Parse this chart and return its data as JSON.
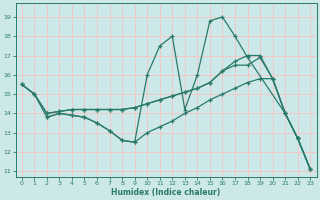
{
  "xlabel": "Humidex (Indice chaleur)",
  "xlim": [
    -0.5,
    23.5
  ],
  "ylim": [
    10.7,
    19.7
  ],
  "yticks": [
    11,
    12,
    13,
    14,
    15,
    16,
    17,
    18,
    19
  ],
  "xticks": [
    0,
    1,
    2,
    3,
    4,
    5,
    6,
    7,
    8,
    9,
    10,
    11,
    12,
    13,
    14,
    15,
    16,
    17,
    18,
    19,
    20,
    21,
    22,
    23
  ],
  "bg_color": "#cce8e8",
  "grid_color": "#f2c8c8",
  "line_color": "#2a7a6a",
  "line1_x": [
    0,
    1,
    2,
    3,
    4,
    5,
    6,
    7,
    8,
    9,
    10,
    11,
    12,
    13,
    14,
    15,
    16,
    17,
    18,
    21,
    22,
    23
  ],
  "line1_y": [
    15.5,
    15.0,
    13.8,
    14.0,
    13.9,
    13.8,
    13.5,
    13.1,
    12.6,
    12.5,
    16.0,
    17.5,
    18.0,
    14.2,
    16.0,
    18.8,
    19.0,
    18.0,
    16.9,
    14.0,
    12.7,
    11.1
  ],
  "line2_x": [
    0,
    1,
    2,
    3,
    4,
    5,
    6,
    7,
    8,
    9,
    10,
    11,
    12,
    13,
    14,
    15,
    16,
    17,
    18,
    19,
    20,
    21,
    22,
    23
  ],
  "line2_y": [
    15.5,
    15.0,
    14.0,
    14.1,
    14.2,
    14.2,
    14.2,
    14.2,
    14.2,
    14.3,
    14.5,
    14.7,
    14.9,
    15.1,
    15.3,
    15.6,
    16.2,
    16.7,
    17.0,
    17.0,
    15.8,
    14.0,
    12.7,
    11.1
  ],
  "line3_x": [
    0,
    1,
    2,
    3,
    4,
    5,
    6,
    7,
    8,
    9,
    10,
    11,
    12,
    13,
    14,
    15,
    16,
    17,
    18,
    19,
    20,
    21,
    22,
    23
  ],
  "line3_y": [
    15.5,
    15.0,
    14.0,
    14.1,
    14.2,
    14.2,
    14.2,
    14.2,
    14.2,
    14.3,
    14.5,
    14.7,
    14.9,
    15.1,
    15.3,
    15.6,
    16.2,
    16.5,
    16.5,
    16.9,
    15.8,
    14.0,
    12.7,
    11.1
  ],
  "line4_x": [
    2,
    3,
    4,
    5,
    6,
    7,
    8,
    9,
    10,
    11,
    12,
    13,
    14,
    15,
    16,
    17,
    18,
    19,
    20,
    21,
    22,
    23
  ],
  "line4_y": [
    13.8,
    14.0,
    13.9,
    13.8,
    13.5,
    13.1,
    12.6,
    12.5,
    13.0,
    13.3,
    13.6,
    14.0,
    14.3,
    14.7,
    15.0,
    15.3,
    15.6,
    15.8,
    15.8,
    14.0,
    12.7,
    11.1
  ]
}
